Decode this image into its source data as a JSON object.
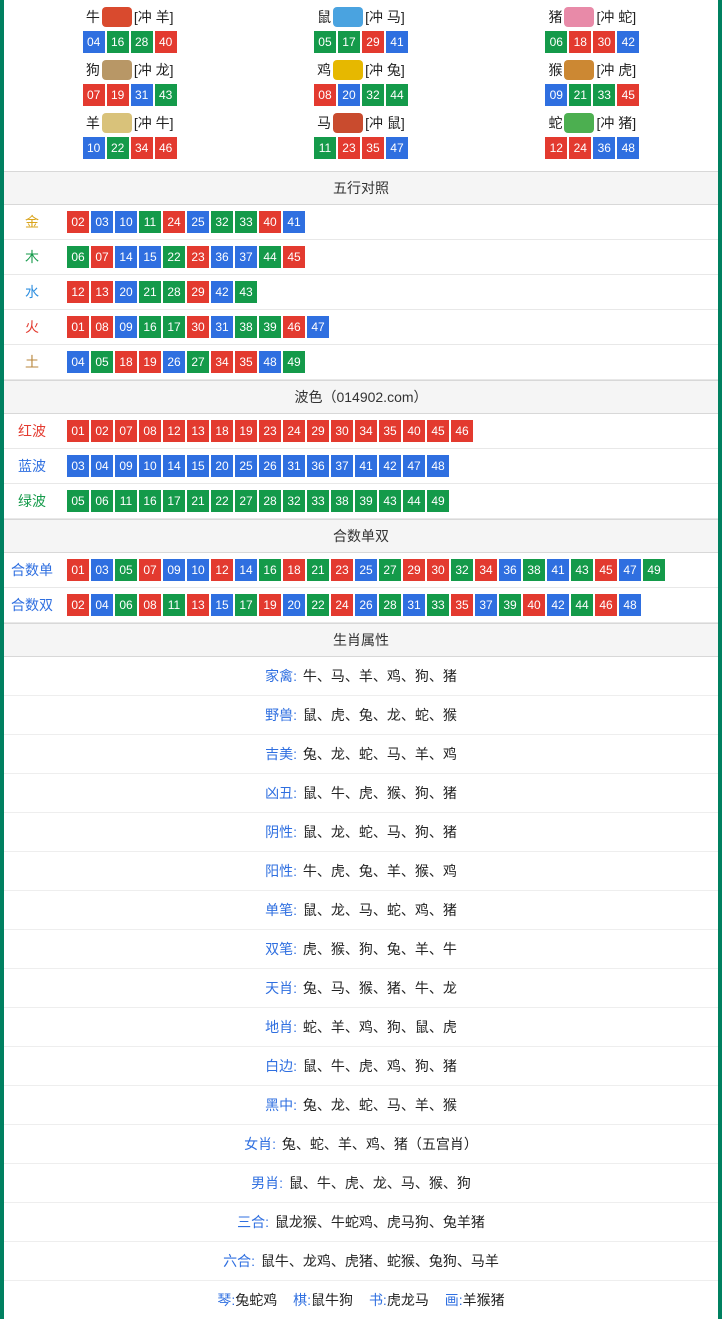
{
  "colors": {
    "red": "#e33a2f",
    "blue": "#2f6fe0",
    "green": "#149a4a",
    "border_green": "#008060",
    "section_bg": "#f5f5f5",
    "divider": "#e8e8e8"
  },
  "color_for_number": {
    "01": "red",
    "02": "red",
    "07": "red",
    "08": "red",
    "12": "red",
    "13": "red",
    "18": "red",
    "19": "red",
    "23": "red",
    "24": "red",
    "29": "red",
    "30": "red",
    "34": "red",
    "35": "red",
    "40": "red",
    "45": "red",
    "46": "red",
    "03": "blue",
    "04": "blue",
    "09": "blue",
    "10": "blue",
    "14": "blue",
    "15": "blue",
    "20": "blue",
    "25": "blue",
    "26": "blue",
    "31": "blue",
    "36": "blue",
    "37": "blue",
    "41": "blue",
    "42": "blue",
    "47": "blue",
    "48": "blue",
    "05": "green",
    "06": "green",
    "11": "green",
    "16": "green",
    "17": "green",
    "21": "green",
    "22": "green",
    "27": "green",
    "28": "green",
    "32": "green",
    "33": "green",
    "38": "green",
    "39": "green",
    "43": "green",
    "44": "green",
    "49": "green"
  },
  "zodiac_icon_colors": {
    "牛": "#d94a2e",
    "鼠": "#4aa3e0",
    "猪": "#e88aa8",
    "狗": "#b89766",
    "鸡": "#e6b800",
    "猴": "#cc8833",
    "羊": "#d9c27a",
    "马": "#c94b2e",
    "蛇": "#4caf50"
  },
  "zodiac": [
    {
      "name": "牛",
      "chong": "[冲 羊]",
      "nums": [
        "04",
        "16",
        "28",
        "40"
      ]
    },
    {
      "name": "鼠",
      "chong": "[冲 马]",
      "nums": [
        "05",
        "17",
        "29",
        "41"
      ]
    },
    {
      "name": "猪",
      "chong": "[冲 蛇]",
      "nums": [
        "06",
        "18",
        "30",
        "42"
      ]
    },
    {
      "name": "狗",
      "chong": "[冲 龙]",
      "nums": [
        "07",
        "19",
        "31",
        "43"
      ]
    },
    {
      "name": "鸡",
      "chong": "[冲 兔]",
      "nums": [
        "08",
        "20",
        "32",
        "44"
      ]
    },
    {
      "name": "猴",
      "chong": "[冲 虎]",
      "nums": [
        "09",
        "21",
        "33",
        "45"
      ]
    },
    {
      "name": "羊",
      "chong": "[冲 牛]",
      "nums": [
        "10",
        "22",
        "34",
        "46"
      ]
    },
    {
      "name": "马",
      "chong": "[冲 鼠]",
      "nums": [
        "11",
        "23",
        "35",
        "47"
      ]
    },
    {
      "name": "蛇",
      "chong": "[冲 猪]",
      "nums": [
        "12",
        "24",
        "36",
        "48"
      ]
    }
  ],
  "wuxing": {
    "title": "五行对照",
    "rows": [
      {
        "label": "金",
        "label_color": "#d9a31a",
        "nums": [
          "02",
          "03",
          "10",
          "11",
          "24",
          "25",
          "32",
          "33",
          "40",
          "41"
        ]
      },
      {
        "label": "木",
        "label_color": "#149a4a",
        "nums": [
          "06",
          "07",
          "14",
          "15",
          "22",
          "23",
          "36",
          "37",
          "44",
          "45"
        ]
      },
      {
        "label": "水",
        "label_color": "#2f8fe0",
        "nums": [
          "12",
          "13",
          "20",
          "21",
          "28",
          "29",
          "42",
          "43"
        ]
      },
      {
        "label": "火",
        "label_color": "#e33a2f",
        "nums": [
          "01",
          "08",
          "09",
          "16",
          "17",
          "30",
          "31",
          "38",
          "39",
          "46",
          "47"
        ]
      },
      {
        "label": "土",
        "label_color": "#b8863b",
        "nums": [
          "04",
          "05",
          "18",
          "19",
          "26",
          "27",
          "34",
          "35",
          "48",
          "49"
        ]
      }
    ]
  },
  "bose": {
    "title": "波色（014902.com）",
    "rows": [
      {
        "label": "红波",
        "label_color": "#e33a2f",
        "nums": [
          "01",
          "02",
          "07",
          "08",
          "12",
          "13",
          "18",
          "19",
          "23",
          "24",
          "29",
          "30",
          "34",
          "35",
          "40",
          "45",
          "46"
        ]
      },
      {
        "label": "蓝波",
        "label_color": "#2f6fe0",
        "nums": [
          "03",
          "04",
          "09",
          "10",
          "14",
          "15",
          "20",
          "25",
          "26",
          "31",
          "36",
          "37",
          "41",
          "42",
          "47",
          "48"
        ]
      },
      {
        "label": "绿波",
        "label_color": "#149a4a",
        "nums": [
          "05",
          "06",
          "11",
          "16",
          "17",
          "21",
          "22",
          "27",
          "28",
          "32",
          "33",
          "38",
          "39",
          "43",
          "44",
          "49"
        ]
      }
    ]
  },
  "heshu": {
    "title": "合数单双",
    "rows": [
      {
        "label": "合数单",
        "label_color": "#2f6fe0",
        "nums": [
          "01",
          "03",
          "05",
          "07",
          "09",
          "10",
          "12",
          "14",
          "16",
          "18",
          "21",
          "23",
          "25",
          "27",
          "29",
          "30",
          "32",
          "34",
          "36",
          "38",
          "41",
          "43",
          "45",
          "47",
          "49"
        ]
      },
      {
        "label": "合数双",
        "label_color": "#2f6fe0",
        "nums": [
          "02",
          "04",
          "06",
          "08",
          "11",
          "13",
          "15",
          "17",
          "19",
          "20",
          "22",
          "24",
          "26",
          "28",
          "31",
          "33",
          "35",
          "37",
          "39",
          "40",
          "42",
          "44",
          "46",
          "48"
        ]
      }
    ]
  },
  "shengxiao": {
    "title": "生肖属性",
    "rows": [
      {
        "key": "家禽:",
        "key_color": "#2f6fe0",
        "val": "牛、马、羊、鸡、狗、猪"
      },
      {
        "key": "野兽:",
        "key_color": "#2f6fe0",
        "val": "鼠、虎、兔、龙、蛇、猴"
      },
      {
        "key": "吉美:",
        "key_color": "#2f6fe0",
        "val": "兔、龙、蛇、马、羊、鸡"
      },
      {
        "key": "凶丑:",
        "key_color": "#2f6fe0",
        "val": "鼠、牛、虎、猴、狗、猪"
      },
      {
        "key": "阴性:",
        "key_color": "#2f6fe0",
        "val": "鼠、龙、蛇、马、狗、猪"
      },
      {
        "key": "阳性:",
        "key_color": "#2f6fe0",
        "val": "牛、虎、兔、羊、猴、鸡"
      },
      {
        "key": "单笔:",
        "key_color": "#2f6fe0",
        "val": "鼠、龙、马、蛇、鸡、猪"
      },
      {
        "key": "双笔:",
        "key_color": "#2f6fe0",
        "val": "虎、猴、狗、兔、羊、牛"
      },
      {
        "key": "天肖:",
        "key_color": "#2f6fe0",
        "val": "兔、马、猴、猪、牛、龙"
      },
      {
        "key": "地肖:",
        "key_color": "#2f6fe0",
        "val": "蛇、羊、鸡、狗、鼠、虎"
      },
      {
        "key": "白边:",
        "key_color": "#2f6fe0",
        "val": "鼠、牛、虎、鸡、狗、猪"
      },
      {
        "key": "黑中:",
        "key_color": "#2f6fe0",
        "val": "兔、龙、蛇、马、羊、猴"
      },
      {
        "key": "女肖:",
        "key_color": "#2f6fe0",
        "val": "兔、蛇、羊、鸡、猪（五宫肖）"
      },
      {
        "key": "男肖:",
        "key_color": "#2f6fe0",
        "val": "鼠、牛、虎、龙、马、猴、狗"
      },
      {
        "key": "三合:",
        "key_color": "#2f6fe0",
        "val": "鼠龙猴、牛蛇鸡、虎马狗、兔羊猪"
      },
      {
        "key": "六合:",
        "key_color": "#2f6fe0",
        "val": "鼠牛、龙鸡、虎猪、蛇猴、兔狗、马羊"
      }
    ]
  },
  "bottom_partial": {
    "items": [
      {
        "key": "琴:",
        "key_color": "#2f6fe0",
        "val": "兔蛇鸡"
      },
      {
        "key": "棋:",
        "key_color": "#2f6fe0",
        "val": "鼠牛狗"
      },
      {
        "key": "书:",
        "key_color": "#2f6fe0",
        "val": "虎龙马"
      },
      {
        "key": "画:",
        "key_color": "#2f6fe0",
        "val": "羊猴猪"
      }
    ]
  }
}
